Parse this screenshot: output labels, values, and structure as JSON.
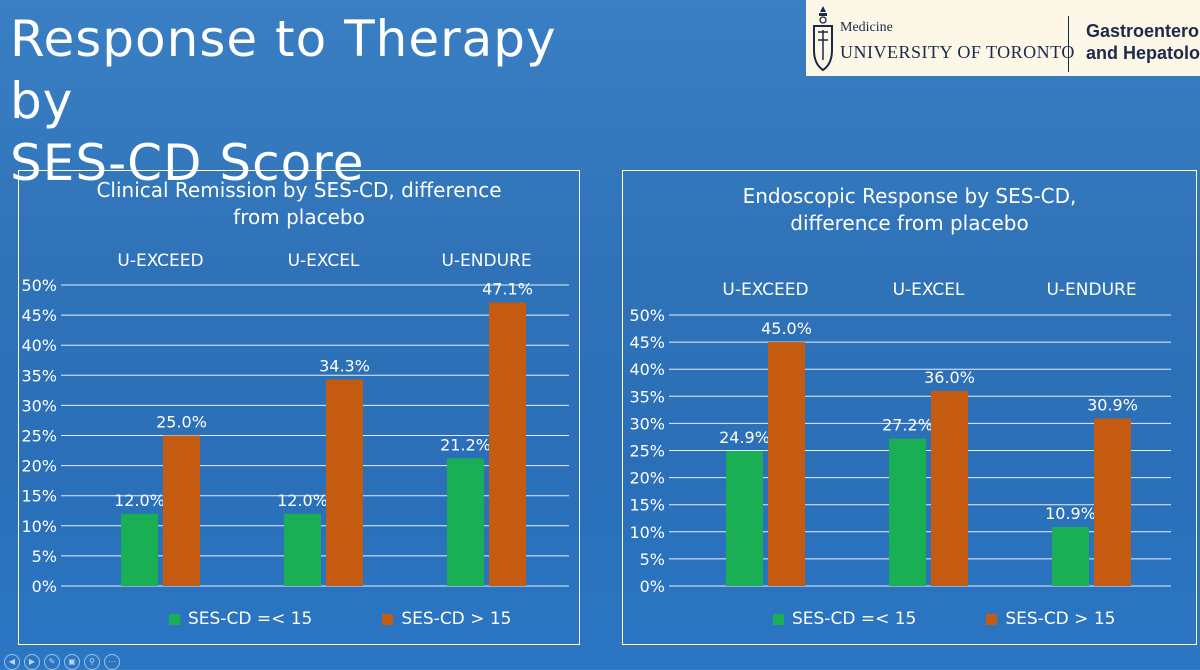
{
  "slide": {
    "title_line1": "Response to Therapy by",
    "title_line2": "SES-CD Score"
  },
  "logo": {
    "medicine": "Medicine",
    "university": "UNIVERSITY OF TORONTO",
    "dept_line1": "Gastroenterology",
    "dept_line2": "and Hepatology"
  },
  "colors": {
    "green": "#1aaf54",
    "orange": "#c55a11",
    "grid": "#e8eef6"
  },
  "chart_data": [
    {
      "type": "bar",
      "title_line1": "Clinical Remission by SES-CD, difference",
      "title_line2": "from placebo",
      "categories": [
        "U-EXCEED",
        "U-EXCEL",
        "U-ENDURE"
      ],
      "series": [
        {
          "name": "SES-CD =< 15",
          "values": [
            12.0,
            12.0,
            21.2
          ],
          "labels": [
            "12.0%",
            "12.0%",
            "21.2%"
          ]
        },
        {
          "name": "SES-CD > 15",
          "values": [
            25.0,
            34.3,
            47.1
          ],
          "labels": [
            "25.0%",
            "34.3%",
            "47.1%"
          ]
        }
      ],
      "y_ticks": [
        "0%",
        "5%",
        "10%",
        "15%",
        "20%",
        "25%",
        "30%",
        "35%",
        "40%",
        "45%",
        "50%"
      ],
      "ylim": [
        0,
        50
      ],
      "grid": true,
      "legend": "bottom"
    },
    {
      "type": "bar",
      "title_line1": "Endoscopic Response by SES-CD,",
      "title_line2": "difference from placebo",
      "categories": [
        "U-EXCEED",
        "U-EXCEL",
        "U-ENDURE"
      ],
      "series": [
        {
          "name": "SES-CD =< 15",
          "values": [
            24.9,
            27.2,
            10.9
          ],
          "labels": [
            "24.9%",
            "27.2%",
            "10.9%"
          ]
        },
        {
          "name": "SES-CD > 15",
          "values": [
            45.0,
            36.0,
            30.9
          ],
          "labels": [
            "45.0%",
            "36.0%",
            "30.9%"
          ]
        }
      ],
      "y_ticks": [
        "0%",
        "5%",
        "10%",
        "15%",
        "20%",
        "25%",
        "30%",
        "35%",
        "40%",
        "45%",
        "50%"
      ],
      "ylim": [
        0,
        50
      ],
      "grid": true,
      "legend": "bottom"
    }
  ]
}
